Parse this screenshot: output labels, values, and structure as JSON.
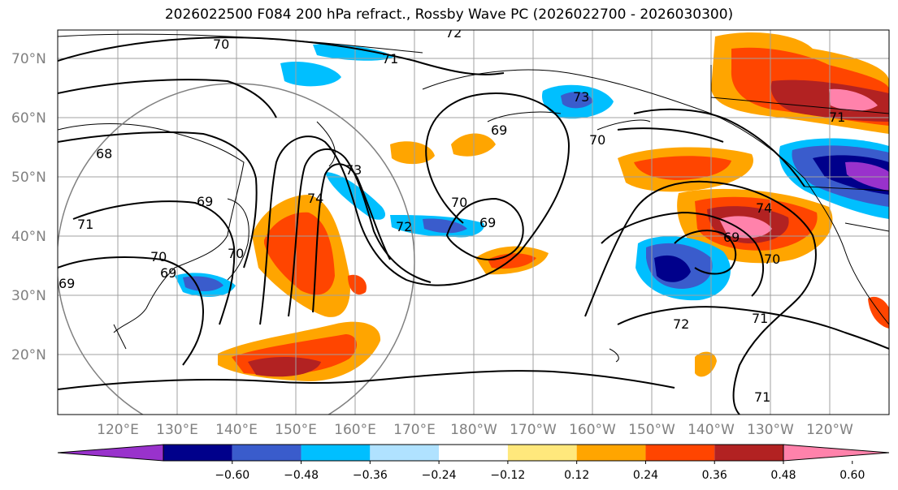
{
  "title": "2026022500 F084 200 hPa refract., Rossby Wave PC (2026022700 - 2026030300)",
  "map": {
    "lat_labels": [
      "70°N",
      "60°N",
      "50°N",
      "40°N",
      "30°N",
      "20°N"
    ],
    "lon_labels": [
      "120°E",
      "130°E",
      "140°E",
      "150°E",
      "160°E",
      "170°E",
      "180°W",
      "170°W",
      "160°W",
      "150°W",
      "140°W",
      "130°W",
      "120°W"
    ],
    "contour_labels": [
      "70",
      "72",
      "71",
      "68",
      "69",
      "71",
      "70",
      "69",
      "69",
      "73",
      "74",
      "72",
      "70",
      "69",
      "70",
      "69",
      "73",
      "74",
      "69",
      "70",
      "71",
      "72",
      "71",
      "70",
      "71"
    ]
  },
  "colorbar": {
    "colors": [
      "#9932cc",
      "#00008b",
      "#3a5ccc",
      "#00bfff",
      "#b0e2ff",
      "#ffffff",
      "#ffe87c",
      "#ffa500",
      "#ff4500",
      "#b22222",
      "#ff82ab"
    ],
    "tick_labels": [
      "−0.60",
      "−0.48",
      "−0.36",
      "−0.24",
      "−0.12",
      "0.12",
      "0.24",
      "0.36",
      "0.48",
      "0.60"
    ]
  }
}
